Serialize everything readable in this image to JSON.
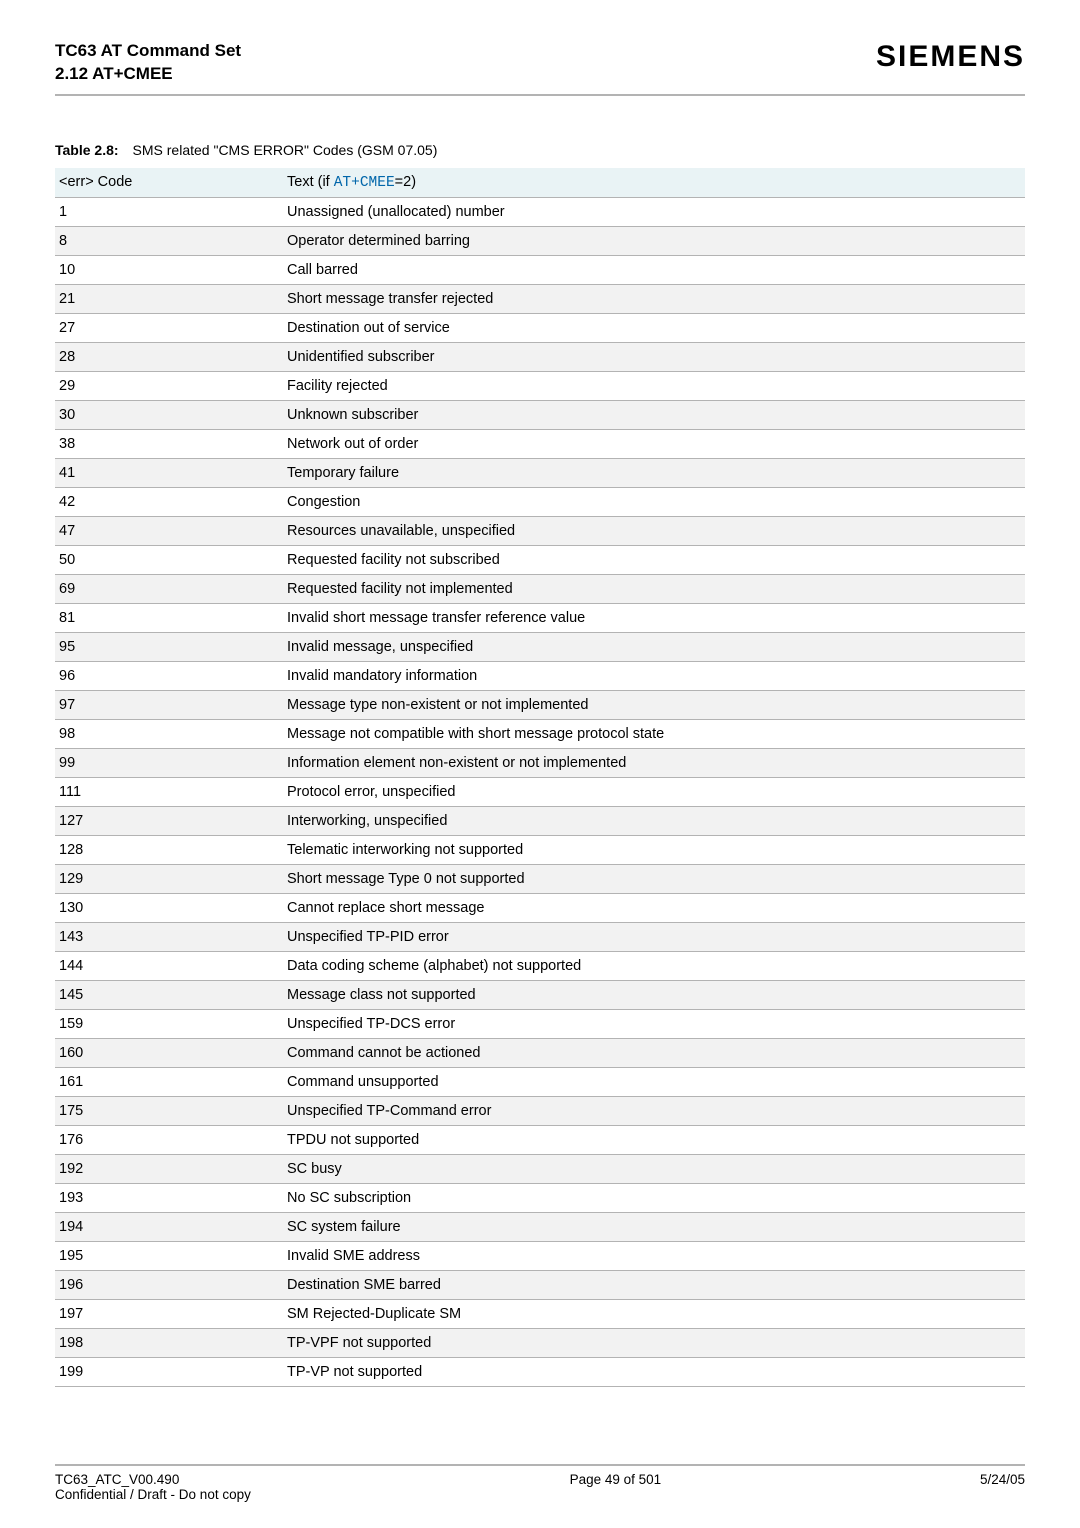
{
  "header": {
    "title_line1": "TC63 AT Command Set",
    "title_line2": "2.12 AT+CMEE",
    "brand": "SIEMENS"
  },
  "table": {
    "caption_label": "Table 2.8:",
    "caption_text": "SMS related \"CMS ERROR\" Codes (GSM 07.05)",
    "header": {
      "col1": "<err> Code",
      "col2_prefix": "Text (if ",
      "col2_link": "AT+CMEE",
      "col2_suffix": "=2)"
    },
    "rows": [
      {
        "code": "1",
        "text": "Unassigned (unallocated) number"
      },
      {
        "code": "8",
        "text": "Operator determined barring"
      },
      {
        "code": "10",
        "text": "Call barred"
      },
      {
        "code": "21",
        "text": "Short message transfer rejected"
      },
      {
        "code": "27",
        "text": "Destination out of service"
      },
      {
        "code": "28",
        "text": "Unidentified subscriber"
      },
      {
        "code": "29",
        "text": "Facility rejected"
      },
      {
        "code": "30",
        "text": "Unknown subscriber"
      },
      {
        "code": "38",
        "text": "Network out of order"
      },
      {
        "code": "41",
        "text": "Temporary failure"
      },
      {
        "code": "42",
        "text": "Congestion"
      },
      {
        "code": "47",
        "text": "Resources unavailable, unspecified"
      },
      {
        "code": "50",
        "text": "Requested facility not subscribed"
      },
      {
        "code": "69",
        "text": "Requested facility not implemented"
      },
      {
        "code": "81",
        "text": "Invalid short message transfer reference value"
      },
      {
        "code": "95",
        "text": "Invalid message, unspecified"
      },
      {
        "code": "96",
        "text": "Invalid mandatory information"
      },
      {
        "code": "97",
        "text": "Message type non-existent or not implemented"
      },
      {
        "code": "98",
        "text": "Message not compatible with short message protocol state"
      },
      {
        "code": "99",
        "text": "Information element non-existent or not implemented"
      },
      {
        "code": "111",
        "text": "Protocol error, unspecified"
      },
      {
        "code": "127",
        "text": "Interworking, unspecified"
      },
      {
        "code": "128",
        "text": "Telematic interworking not supported"
      },
      {
        "code": "129",
        "text": "Short message Type 0 not supported"
      },
      {
        "code": "130",
        "text": "Cannot replace short message"
      },
      {
        "code": "143",
        "text": "Unspecified TP-PID error"
      },
      {
        "code": "144",
        "text": "Data coding scheme (alphabet) not supported"
      },
      {
        "code": "145",
        "text": "Message class not supported"
      },
      {
        "code": "159",
        "text": "Unspecified TP-DCS error"
      },
      {
        "code": "160",
        "text": "Command cannot be actioned"
      },
      {
        "code": "161",
        "text": "Command unsupported"
      },
      {
        "code": "175",
        "text": "Unspecified TP-Command error"
      },
      {
        "code": "176",
        "text": "TPDU not supported"
      },
      {
        "code": "192",
        "text": "SC busy"
      },
      {
        "code": "193",
        "text": "No SC subscription"
      },
      {
        "code": "194",
        "text": "SC system failure"
      },
      {
        "code": "195",
        "text": "Invalid SME address"
      },
      {
        "code": "196",
        "text": "Destination SME barred"
      },
      {
        "code": "197",
        "text": "SM Rejected-Duplicate SM"
      },
      {
        "code": "198",
        "text": "TP-VPF not supported"
      },
      {
        "code": "199",
        "text": "TP-VP not supported"
      }
    ]
  },
  "footer": {
    "left_line1": "TC63_ATC_V00.490",
    "left_line2": "Confidential / Draft - Do not copy",
    "center": "Page 49 of 501",
    "right": "5/24/05"
  }
}
